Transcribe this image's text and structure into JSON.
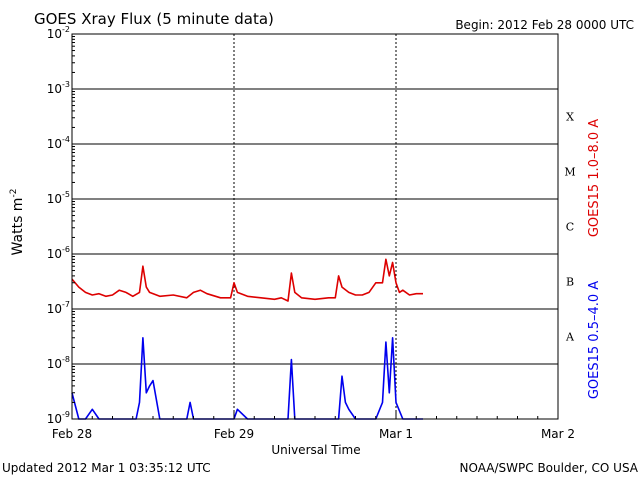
{
  "chart_data": {
    "type": "line",
    "title": "GOES Xray Flux (5 minute data)",
    "begin_label": "Begin:  2012 Feb 28 0000 UTC",
    "xlabel": "Universal Time",
    "ylabel": "Watts m",
    "ylabel_exp": "-2",
    "footer_left": "Updated 2012 Mar  1 03:35:12 UTC",
    "footer_right": "NOAA/SWPC Boulder, CO USA",
    "y_scale": "log",
    "ylim": [
      1e-09,
      0.01
    ],
    "xlim_hours": [
      0,
      72
    ],
    "x_ticks": [
      {
        "hour": 0,
        "label": "Feb 28"
      },
      {
        "hour": 24,
        "label": "Feb 29"
      },
      {
        "hour": 48,
        "label": "Mar 1"
      },
      {
        "hour": 72,
        "label": "Mar 2"
      }
    ],
    "y_ticks": [
      {
        "exp": -2,
        "label": "10",
        "sup": "-2"
      },
      {
        "exp": -3,
        "label": "10",
        "sup": "-3"
      },
      {
        "exp": -4,
        "label": "10",
        "sup": "-4"
      },
      {
        "exp": -5,
        "label": "10",
        "sup": "-5"
      },
      {
        "exp": -6,
        "label": "10",
        "sup": "-6"
      },
      {
        "exp": -7,
        "label": "10",
        "sup": "-7"
      },
      {
        "exp": -8,
        "label": "10",
        "sup": "-8"
      },
      {
        "exp": -9,
        "label": "10",
        "sup": "-9"
      }
    ],
    "flare_classes": [
      {
        "label": "X",
        "exp": -3.5
      },
      {
        "label": "M",
        "exp": -4.5
      },
      {
        "label": "C",
        "exp": -5.5
      },
      {
        "label": "B",
        "exp": -6.5
      },
      {
        "label": "A",
        "exp": -7.5
      }
    ],
    "grid_lines_exp": [
      -3,
      -4,
      -5,
      -6,
      -7,
      -8
    ],
    "series": [
      {
        "name": "GOES15 1.0–8.0 A",
        "color": "#dd0000",
        "points": [
          [
            0,
            3.5e-07
          ],
          [
            1,
            2.5e-07
          ],
          [
            2,
            2e-07
          ],
          [
            3,
            1.8e-07
          ],
          [
            4,
            1.9e-07
          ],
          [
            5,
            1.7e-07
          ],
          [
            6,
            1.8e-07
          ],
          [
            7,
            2.2e-07
          ],
          [
            8,
            2e-07
          ],
          [
            9,
            1.7e-07
          ],
          [
            10,
            2e-07
          ],
          [
            10.5,
            6e-07
          ],
          [
            11,
            2.5e-07
          ],
          [
            11.5,
            2e-07
          ],
          [
            13,
            1.7e-07
          ],
          [
            15,
            1.8e-07
          ],
          [
            17,
            1.6e-07
          ],
          [
            18,
            2e-07
          ],
          [
            19,
            2.2e-07
          ],
          [
            20,
            1.9e-07
          ],
          [
            22,
            1.6e-07
          ],
          [
            23.5,
            1.6e-07
          ],
          [
            24,
            3e-07
          ],
          [
            24.5,
            2e-07
          ],
          [
            26,
            1.7e-07
          ],
          [
            28,
            1.6e-07
          ],
          [
            30,
            1.5e-07
          ],
          [
            31,
            1.6e-07
          ],
          [
            32,
            1.4e-07
          ],
          [
            32.5,
            4.5e-07
          ],
          [
            33,
            2e-07
          ],
          [
            34,
            1.6e-07
          ],
          [
            36,
            1.5e-07
          ],
          [
            38,
            1.6e-07
          ],
          [
            39,
            1.6e-07
          ],
          [
            39.5,
            4e-07
          ],
          [
            40,
            2.5e-07
          ],
          [
            41,
            2e-07
          ],
          [
            42,
            1.8e-07
          ],
          [
            43,
            1.8e-07
          ],
          [
            44,
            2e-07
          ],
          [
            45,
            3e-07
          ],
          [
            46,
            3e-07
          ],
          [
            46.5,
            8e-07
          ],
          [
            47,
            4e-07
          ],
          [
            47.5,
            7e-07
          ],
          [
            48,
            3e-07
          ],
          [
            48.5,
            2e-07
          ],
          [
            49,
            2.2e-07
          ],
          [
            50,
            1.8e-07
          ],
          [
            51,
            1.9e-07
          ],
          [
            52,
            1.9e-07
          ]
        ]
      },
      {
        "name": "GOES15 0.5–4.0 A",
        "color": "#0000ee",
        "points": [
          [
            0,
            3e-09
          ],
          [
            1,
            1e-09
          ],
          [
            2,
            1e-09
          ],
          [
            3,
            1.5e-09
          ],
          [
            4,
            1e-09
          ],
          [
            6,
            1e-09
          ],
          [
            8,
            1e-09
          ],
          [
            9.5,
            1e-09
          ],
          [
            10,
            2e-09
          ],
          [
            10.5,
            3e-08
          ],
          [
            11,
            3e-09
          ],
          [
            11.5,
            4e-09
          ],
          [
            12,
            5e-09
          ],
          [
            13,
            1e-09
          ],
          [
            17,
            1e-09
          ],
          [
            17.5,
            2e-09
          ],
          [
            18,
            1e-09
          ],
          [
            22,
            1e-09
          ],
          [
            24,
            1e-09
          ],
          [
            24.5,
            1.5e-09
          ],
          [
            26,
            1e-09
          ],
          [
            32,
            1e-09
          ],
          [
            32.5,
            1.2e-08
          ],
          [
            33,
            1e-09
          ],
          [
            38,
            1e-09
          ],
          [
            39.5,
            1e-09
          ],
          [
            40,
            6e-09
          ],
          [
            40.5,
            2e-09
          ],
          [
            41,
            1.5e-09
          ],
          [
            42,
            1e-09
          ],
          [
            45,
            1e-09
          ],
          [
            46,
            2e-09
          ],
          [
            46.5,
            2.5e-08
          ],
          [
            47,
            3e-09
          ],
          [
            47.5,
            3e-08
          ],
          [
            48,
            2e-09
          ],
          [
            49,
            1e-09
          ],
          [
            52,
            1e-09
          ]
        ]
      }
    ]
  }
}
